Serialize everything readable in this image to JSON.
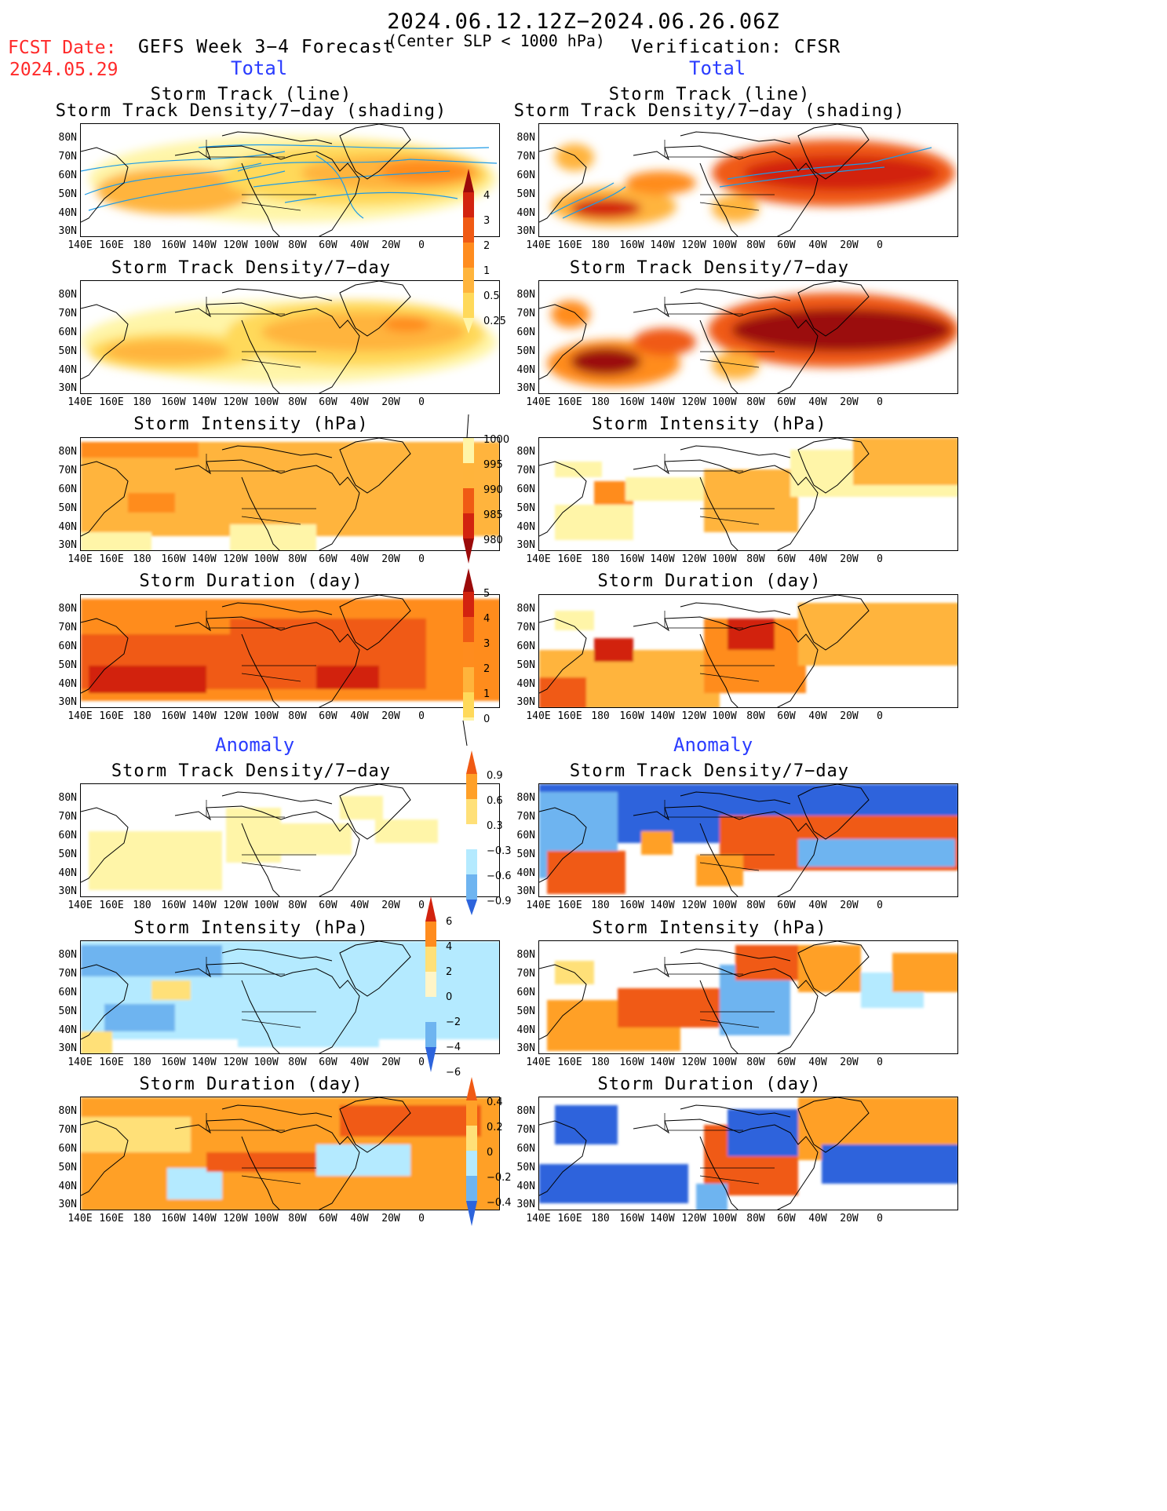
{
  "header": {
    "period": "2024.06.12.12Z−2024.06.26.06Z",
    "fcst_label": "FCST Date:",
    "fcst_date": "2024.05.29",
    "left_title": "GEFS Week 3−4 Forecast",
    "subtitle": "(Center SLP < 1000 hPa)",
    "right_title": "Verification: CFSR",
    "total_left": "Total",
    "total_right": "Total",
    "anomaly_left": "Anomaly",
    "anomaly_right": "Anomaly"
  },
  "panel_titles": {
    "track_line": "Storm Track (line)",
    "track_density_shading": "Storm Track Density/7−day (shading)",
    "track_density": "Storm Track Density/7−day",
    "intensity": "Storm Intensity (hPa)",
    "duration": "Storm Duration (day)"
  },
  "axes": {
    "lat_labels": [
      "80N",
      "70N",
      "60N",
      "50N",
      "40N",
      "30N"
    ],
    "lon_labels": [
      "140E",
      "160E",
      "180",
      "160W",
      "140W",
      "120W",
      "100W",
      "80W",
      "60W",
      "40W",
      "20W",
      "0"
    ]
  },
  "colorbars": {
    "density_total": [
      "4",
      "3",
      "2",
      "1",
      "0.5",
      "0.25"
    ],
    "intensity_total": [
      "1000",
      "995",
      "990",
      "985",
      "980"
    ],
    "duration_total": [
      "5",
      "4",
      "3",
      "2",
      "1",
      "0"
    ],
    "density_anom": [
      "0.9",
      "0.6",
      "0.3",
      "−0.3",
      "−0.6",
      "−0.9"
    ],
    "intensity_anom": [
      "6",
      "4",
      "2",
      "0",
      "−2",
      "−4",
      "−6"
    ],
    "duration_anom": [
      "0.4",
      "0.2",
      "0",
      "−0.2",
      "−0.4"
    ]
  },
  "colors": {
    "light_yellow": "#fff5a8",
    "yellow": "#ffd95a",
    "light_orange": "#ffb43c",
    "orange": "#ff8c1e",
    "dark_orange": "#f05a14",
    "red": "#d2230f",
    "dark_red": "#9b0a0a",
    "light_blue": "#b4eaff",
    "mid_blue": "#6eb4f0",
    "blue": "#2d64dc",
    "track_line": "#1e9be6"
  }
}
